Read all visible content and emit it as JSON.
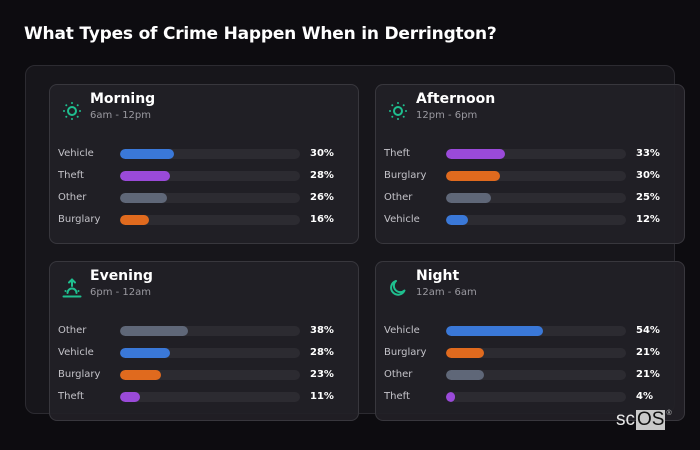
{
  "page": {
    "title": "What Types of Crime Happen When in Derrington?"
  },
  "colors": {
    "accent_icon": "#1fbf8f",
    "Vehicle": "#3a78d8",
    "Theft": "#9a4ad9",
    "Other": "#5f6778",
    "Burglary": "#e06a1e",
    "track": "#2c2b31"
  },
  "cards": [
    {
      "title": "Morning",
      "subtitle": "6am - 12pm",
      "icon": "sun-icon",
      "rows": [
        {
          "label": "Vehicle",
          "value": 30,
          "display": "30%"
        },
        {
          "label": "Theft",
          "value": 28,
          "display": "28%"
        },
        {
          "label": "Other",
          "value": 26,
          "display": "26%"
        },
        {
          "label": "Burglary",
          "value": 16,
          "display": "16%"
        }
      ]
    },
    {
      "title": "Afternoon",
      "subtitle": "12pm - 6pm",
      "icon": "sun-icon",
      "rows": [
        {
          "label": "Theft",
          "value": 33,
          "display": "33%"
        },
        {
          "label": "Burglary",
          "value": 30,
          "display": "30%"
        },
        {
          "label": "Other",
          "value": 25,
          "display": "25%"
        },
        {
          "label": "Vehicle",
          "value": 12,
          "display": "12%"
        }
      ]
    },
    {
      "title": "Evening",
      "subtitle": "6pm - 12am",
      "icon": "sunset-icon",
      "rows": [
        {
          "label": "Other",
          "value": 38,
          "display": "38%"
        },
        {
          "label": "Vehicle",
          "value": 28,
          "display": "28%"
        },
        {
          "label": "Burglary",
          "value": 23,
          "display": "23%"
        },
        {
          "label": "Theft",
          "value": 11,
          "display": "11%"
        }
      ]
    },
    {
      "title": "Night",
      "subtitle": "12am - 6am",
      "icon": "moon-icon",
      "rows": [
        {
          "label": "Vehicle",
          "value": 54,
          "display": "54%"
        },
        {
          "label": "Burglary",
          "value": 21,
          "display": "21%"
        },
        {
          "label": "Other",
          "value": 21,
          "display": "21%"
        },
        {
          "label": "Theft",
          "value": 4,
          "display": "4%"
        }
      ]
    }
  ],
  "logo": {
    "prefix": "sc",
    "boxed": "OS",
    "mark": "®"
  },
  "chart_data": {
    "type": "bar",
    "title": "What Types of Crime Happen When in Derrington?",
    "orientation": "horizontal",
    "unit": "%",
    "xlim": [
      0,
      100
    ],
    "panels": [
      {
        "name": "Morning",
        "range": "6am - 12pm",
        "categories": [
          "Vehicle",
          "Theft",
          "Other",
          "Burglary"
        ],
        "values": [
          30,
          28,
          26,
          16
        ]
      },
      {
        "name": "Afternoon",
        "range": "12pm - 6pm",
        "categories": [
          "Theft",
          "Burglary",
          "Other",
          "Vehicle"
        ],
        "values": [
          33,
          30,
          25,
          12
        ]
      },
      {
        "name": "Evening",
        "range": "6pm - 12am",
        "categories": [
          "Other",
          "Vehicle",
          "Burglary",
          "Theft"
        ],
        "values": [
          38,
          28,
          23,
          11
        ]
      },
      {
        "name": "Night",
        "range": "12am - 6am",
        "categories": [
          "Vehicle",
          "Burglary",
          "Other",
          "Theft"
        ],
        "values": [
          54,
          21,
          21,
          4
        ]
      }
    ]
  }
}
